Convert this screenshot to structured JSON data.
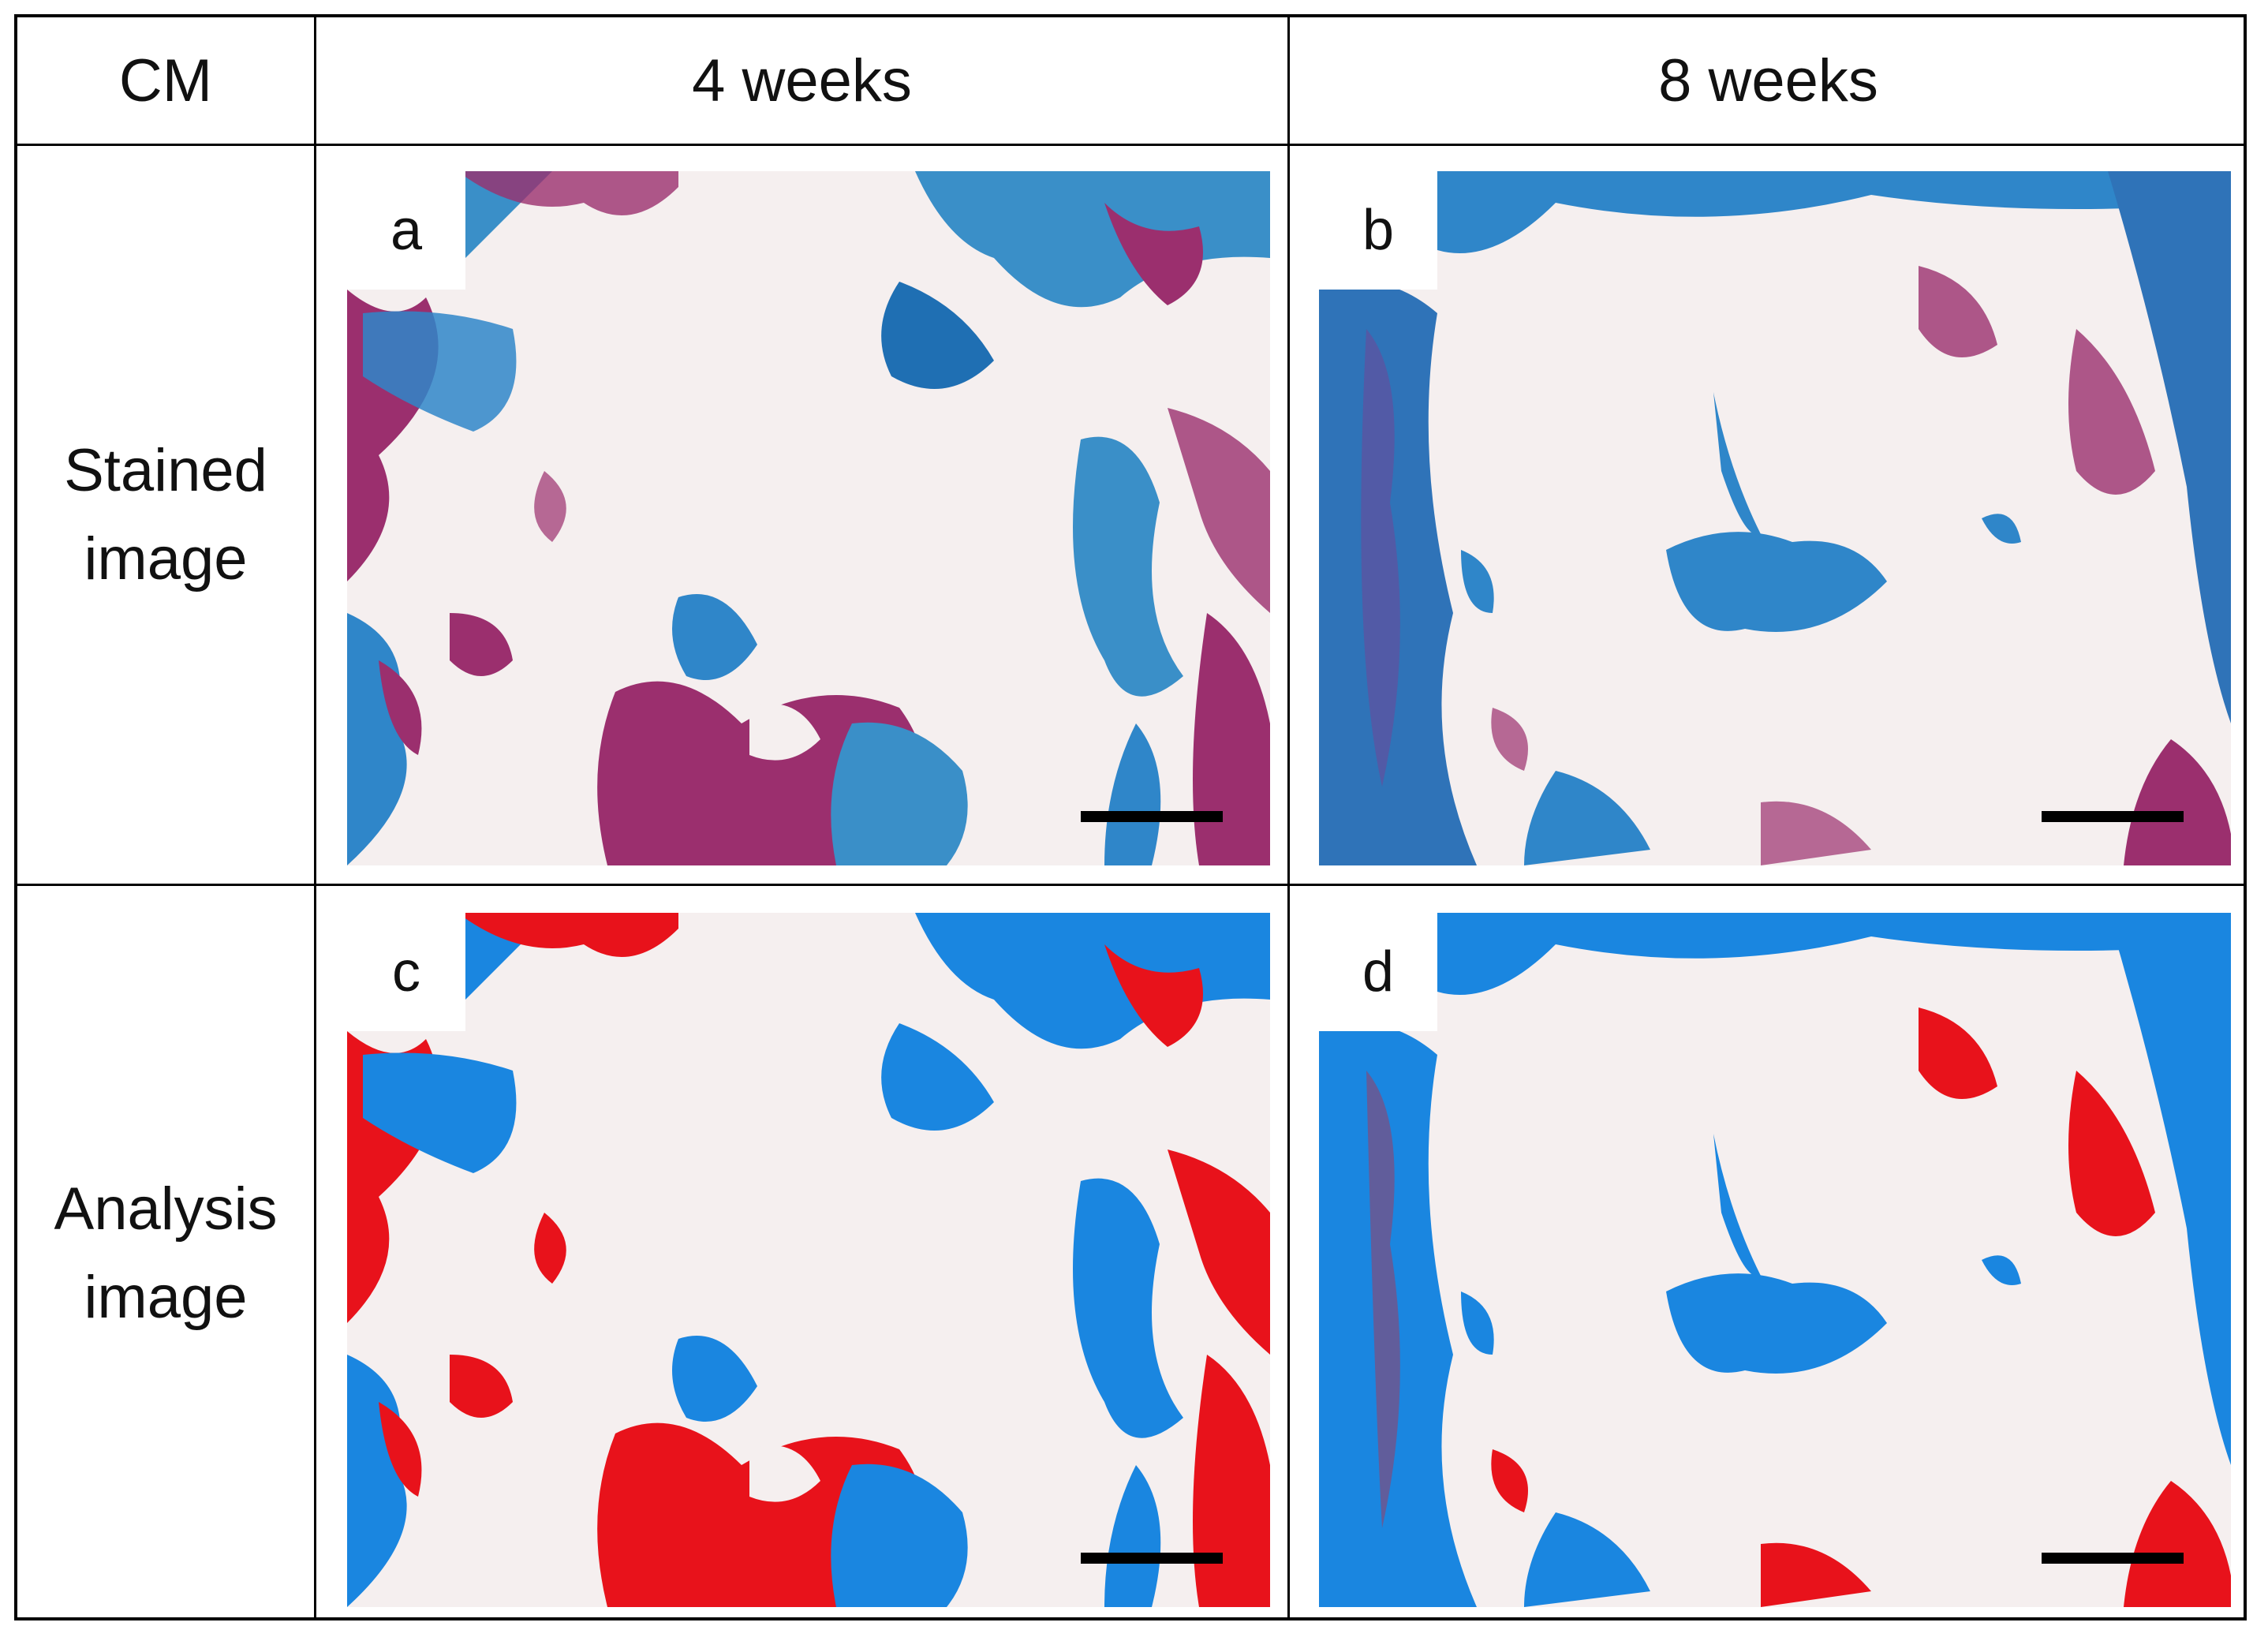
{
  "header": {
    "corner_label": "CM",
    "columns": [
      "4 weeks",
      "8 weeks"
    ]
  },
  "rows": [
    {
      "label_line1": "Stained",
      "label_line2": "image"
    },
    {
      "label_line1": "Analysis",
      "label_line2": "image"
    }
  ],
  "panels": {
    "a": "a",
    "b": "b",
    "c": "c",
    "d": "d"
  },
  "colors": {
    "background": "#f5efef",
    "stain_blue": "#2f86c9",
    "stain_magenta": "#9b2f6e",
    "analysis_blue": "#1a86e0",
    "analysis_red": "#e8121b"
  }
}
